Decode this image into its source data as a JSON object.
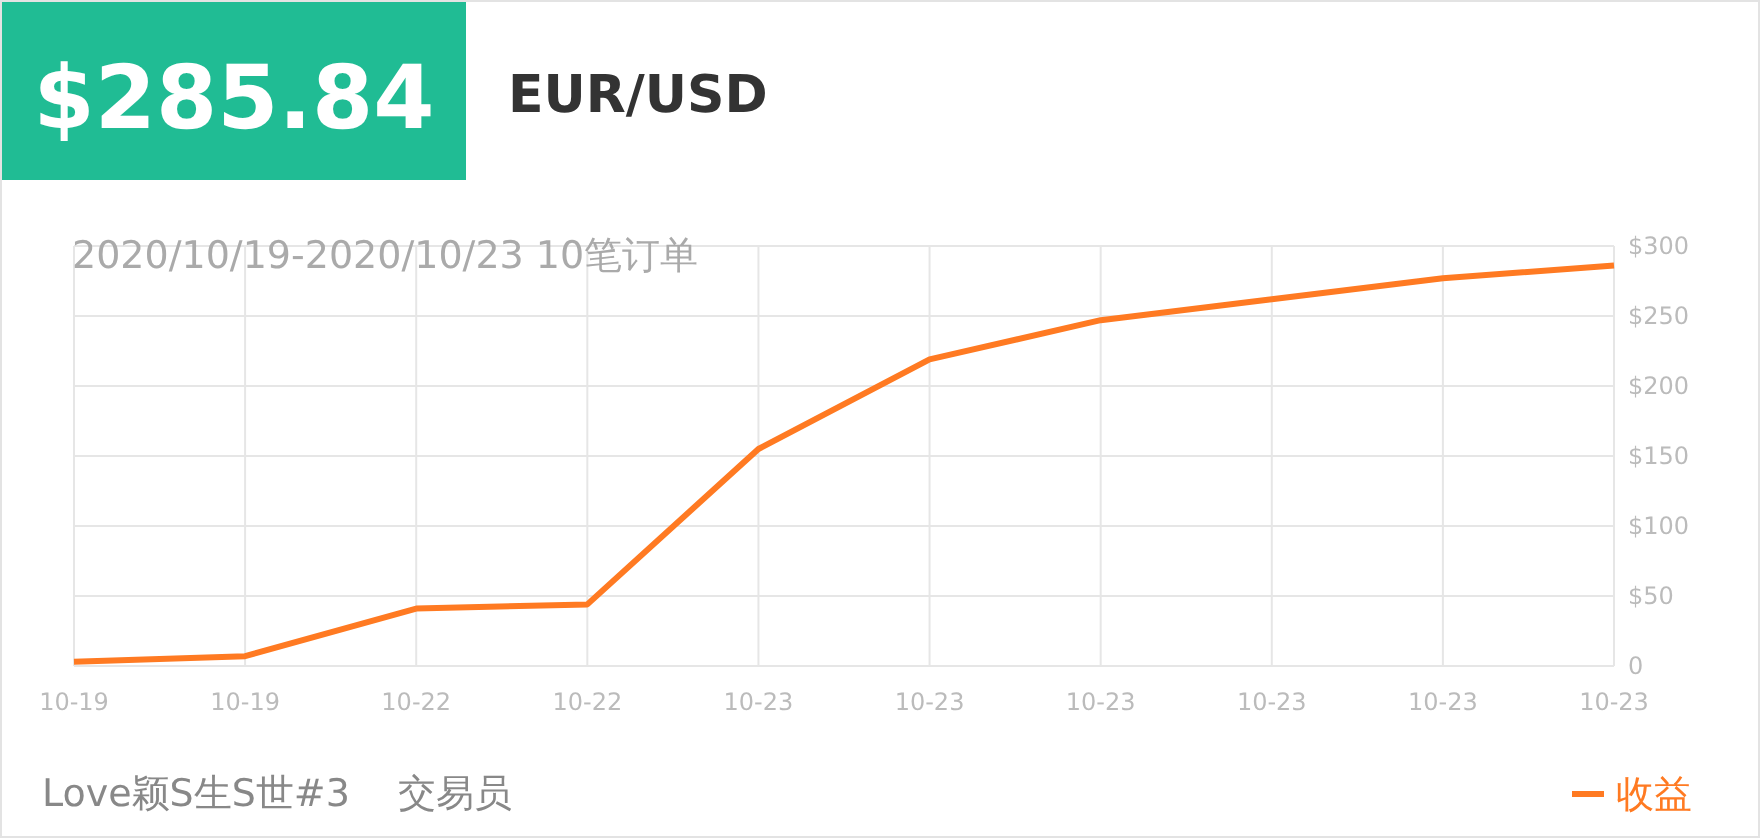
{
  "chart_data": {
    "type": "line",
    "title": "$285.84",
    "subtitle": "EUR/USD",
    "categories": [
      "10-19",
      "10-19",
      "10-22",
      "10-22",
      "10-23",
      "10-23",
      "10-23",
      "10-23",
      "10-23",
      "10-23"
    ],
    "series": [
      {
        "name": "收益",
        "color": "#ff7a22",
        "values": [
          3,
          7,
          41,
          44,
          155,
          219,
          247,
          262,
          277,
          286
        ]
      }
    ],
    "ylim": [
      0,
      300
    ],
    "yticks": [
      0,
      {
        "value": 50,
        "label": "$50"
      },
      {
        "value": 100,
        "label": "$100"
      },
      {
        "value": 150,
        "label": "$150"
      },
      {
        "value": 200,
        "label": "$200"
      },
      {
        "value": 250,
        "label": "$250"
      },
      {
        "value": 300,
        "label": "$300"
      }
    ],
    "grid": true,
    "legend": "bottom right",
    "marker": "none",
    "line_style": "solid",
    "annotations": [
      "2020/10/19-2020/10/23 10笔订单",
      "Love颖S生S世#3    交易员"
    ]
  }
}
